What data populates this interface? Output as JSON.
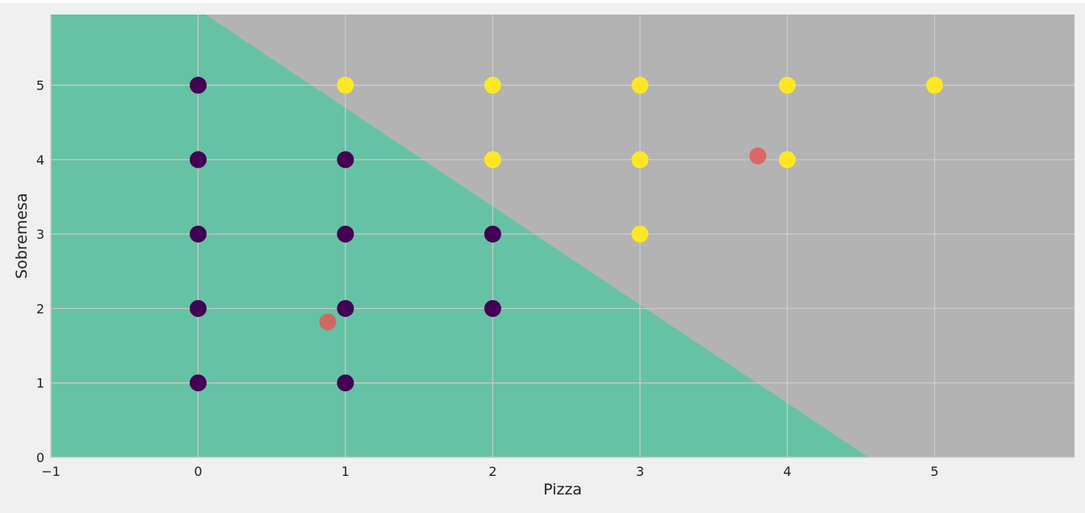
{
  "chart_data": {
    "type": "scatter",
    "title": "",
    "xlabel": "Pizza",
    "ylabel": "Sobremesa",
    "xlim": [
      -1,
      5.95
    ],
    "ylim": [
      0,
      5.95
    ],
    "x_ticks": [
      -1,
      0,
      1,
      2,
      3,
      4,
      5
    ],
    "y_ticks": [
      0,
      1,
      2,
      3,
      4,
      5
    ],
    "grid": true,
    "decision_boundary": {
      "description_points": [
        [
          0.05,
          5.95
        ],
        [
          4.55,
          0
        ]
      ],
      "left_region_color": "#66c2a5",
      "right_region_color": "#b3b3b3"
    },
    "series": [
      {
        "color": "#440154",
        "points": [
          [
            0,
            5
          ],
          [
            0,
            4
          ],
          [
            0,
            3
          ],
          [
            0,
            2
          ],
          [
            0,
            1
          ],
          [
            1,
            4
          ],
          [
            1,
            3
          ],
          [
            1,
            2
          ],
          [
            1,
            1
          ],
          [
            2,
            3
          ],
          [
            2,
            2
          ]
        ]
      },
      {
        "color": "#fde725",
        "points": [
          [
            1,
            5
          ],
          [
            2,
            5
          ],
          [
            3,
            5
          ],
          [
            4,
            5
          ],
          [
            5,
            5
          ],
          [
            2,
            4
          ],
          [
            3,
            4
          ],
          [
            4,
            4
          ],
          [
            3,
            3
          ]
        ]
      },
      {
        "color": "#e05a5a",
        "opacity": 0.85,
        "points": [
          [
            0.88,
            1.82
          ],
          [
            3.8,
            4.05
          ]
        ]
      }
    ]
  }
}
